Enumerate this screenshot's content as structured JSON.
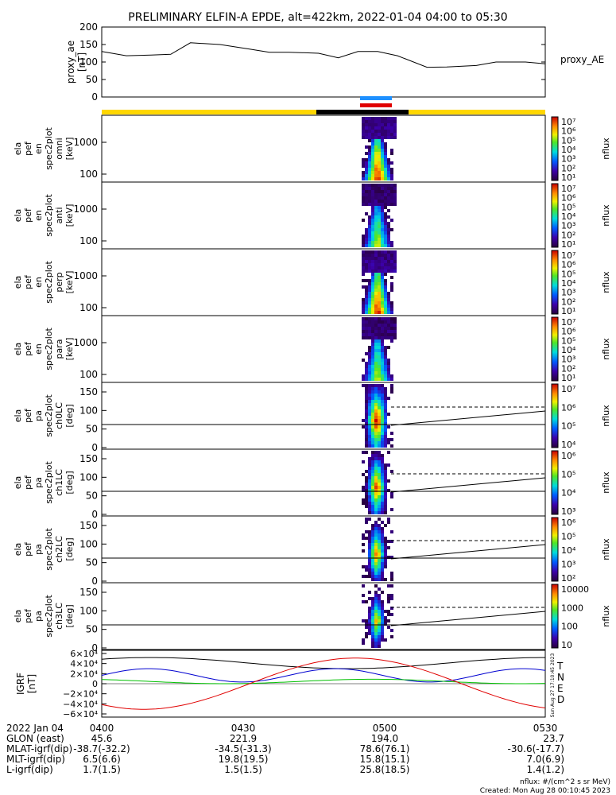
{
  "chart_data": {
    "type": "heatmap",
    "title": "PRELIMINARY ELFIN-A EPDE, alt=422km, 2022-01-04 04:00 to 05:30",
    "time_range": [
      "2022-01-04 04:00",
      "2022-01-04 05:30"
    ],
    "proxy_ae": {
      "ylabel": [
        "proxy_ae",
        "[nT]"
      ],
      "legend": "proxy_AE",
      "ylim": [
        0,
        200
      ],
      "yticks": [
        "200",
        "150",
        "100",
        "50",
        "0"
      ],
      "series_minutes": [
        0,
        5,
        10,
        14,
        18,
        24,
        30,
        34,
        38,
        44,
        48,
        52,
        56,
        60,
        66,
        70,
        76,
        80,
        86,
        90
      ],
      "series_values": [
        130,
        118,
        120,
        122,
        155,
        150,
        137,
        128,
        128,
        125,
        112,
        130,
        130,
        118,
        85,
        86,
        90,
        100,
        100,
        95
      ]
    },
    "spectrogram_panels": [
      {
        "name": "ela_pef_en_spec2plot_omni",
        "ylabel": [
          "ela",
          "pef",
          "en",
          "spec2plot",
          "omni",
          "[keV]"
        ],
        "yticks": [
          "1000",
          "100"
        ],
        "cbar": {
          "label": "nflux",
          "ticks": [
            "10⁷",
            "10⁶",
            "10⁵",
            "10⁴",
            "10³",
            "10²",
            "10¹"
          ]
        }
      },
      {
        "name": "ela_pef_en_spec2plot_anti",
        "ylabel": [
          "ela",
          "pef",
          "en",
          "spec2plot",
          "anti",
          "[keV]"
        ],
        "yticks": [
          "1000",
          "100"
        ],
        "cbar": {
          "label": "nflux",
          "ticks": [
            "10⁷",
            "10⁶",
            "10⁵",
            "10⁴",
            "10³",
            "10²",
            "10¹"
          ]
        }
      },
      {
        "name": "ela_pef_en_spec2plot_perp",
        "ylabel": [
          "ela",
          "pef",
          "en",
          "spec2plot",
          "perp",
          "[keV]"
        ],
        "yticks": [
          "1000",
          "100"
        ],
        "cbar": {
          "label": "nflux",
          "ticks": [
            "10⁷",
            "10⁶",
            "10⁵",
            "10⁴",
            "10³",
            "10²",
            "10¹"
          ]
        }
      },
      {
        "name": "ela_pef_en_spec2plot_para",
        "ylabel": [
          "ela",
          "pef",
          "en",
          "spec2plot",
          "para",
          "[keV]"
        ],
        "yticks": [
          "1000",
          "100"
        ],
        "cbar": {
          "label": "nflux",
          "ticks": [
            "10⁷",
            "10⁶",
            "10⁵",
            "10⁴",
            "10³",
            "10²",
            "10¹"
          ]
        }
      },
      {
        "name": "ela_pef_pa_spec2plot_ch0LC",
        "ylabel": [
          "ela",
          "pef",
          "pa",
          "spec2plot",
          "ch0LC",
          "[deg]"
        ],
        "yticks": [
          "150",
          "100",
          "50",
          "0"
        ],
        "cbar": {
          "label": "nflux",
          "ticks": [
            "10⁷",
            "10⁶",
            "10⁵",
            "10⁴"
          ]
        }
      },
      {
        "name": "ela_pef_pa_spec2plot_ch1LC",
        "ylabel": [
          "ela",
          "pef",
          "pa",
          "spec2plot",
          "ch1LC",
          "[deg]"
        ],
        "yticks": [
          "150",
          "100",
          "50",
          "0"
        ],
        "cbar": {
          "label": "nflux",
          "ticks": [
            "10⁶",
            "10⁵",
            "10⁴",
            "10³"
          ]
        }
      },
      {
        "name": "ela_pef_pa_spec2plot_ch2LC",
        "ylabel": [
          "ela",
          "pef",
          "pa",
          "spec2plot",
          "ch2LC",
          "[deg]"
        ],
        "yticks": [
          "150",
          "100",
          "50",
          "0"
        ],
        "cbar": {
          "label": "nflux",
          "ticks": [
            "10⁶",
            "10⁵",
            "10⁴",
            "10³",
            "10²"
          ]
        }
      },
      {
        "name": "ela_pef_pa_spec2plot_ch3LC",
        "ylabel": [
          "ela",
          "pef",
          "pa",
          "spec2plot",
          "ch3LC",
          "[deg]"
        ],
        "yticks": [
          "150",
          "100",
          "50",
          "0"
        ],
        "cbar": {
          "label": "nflux",
          "ticks": [
            "10000",
            "1000",
            "100",
            "10"
          ]
        }
      }
    ],
    "igrf": {
      "ylabel": [
        "IGRF",
        "[nT]"
      ],
      "yticks": [
        "6×10⁴",
        "4×10⁴",
        "2×10⁴",
        "0",
        "−2×10⁴",
        "−4×10⁴",
        "−6×10⁴"
      ],
      "legend": [
        {
          "name": "T",
          "color": "#000000"
        },
        {
          "name": "N",
          "color": "#0000d0"
        },
        {
          "name": "E",
          "color": "#00c000"
        },
        {
          "name": "D",
          "color": "#e00000"
        }
      ],
      "ylim": [
        -60000,
        60000
      ],
      "side_stamp": "Sun Aug 27 17:10:45 2023"
    },
    "orbit_table": {
      "date_label": "2022 Jan 04",
      "tick_labels": [
        "0400",
        "0430",
        "0500",
        "0530"
      ],
      "rows": [
        {
          "label": "GLON (east)",
          "values": [
            "45.6",
            "221.9",
            "194.0",
            "23.7"
          ]
        },
        {
          "label": "MLAT-igrf(dip)",
          "values": [
            "-38.7(-32.2)",
            "-34.5(-31.3)",
            "78.6(76.1)",
            "-30.6(-17.7)"
          ]
        },
        {
          "label": "MLT-igrf(dip)",
          "values": [
            "6.5(6.6)",
            "19.8(19.5)",
            "15.8(15.1)",
            "7.0(6.9)"
          ]
        },
        {
          "label": "L-igrf(dip)",
          "values": [
            "1.7(1.5)",
            "1.5(1.5)",
            "25.8(18.5)",
            "1.4(1.2)"
          ]
        }
      ]
    },
    "footer": {
      "units": "nflux: #/(cm^2 s sr MeV)",
      "created": "Created: Mon Aug 28 00:10:45 2023"
    },
    "colors": {
      "state_bar_yellow": "#ffd700",
      "state_bar_black": "#000000",
      "science_blue": "#1e90ff",
      "science_red": "#e00000"
    }
  }
}
